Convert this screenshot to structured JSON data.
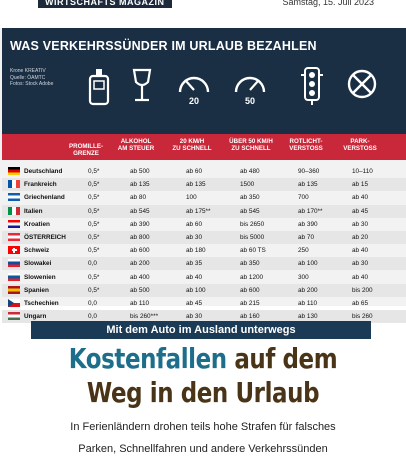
{
  "topbar": {
    "magazine": "WIRTSCHAFTS MAGAZIN",
    "date": "Samstag, 15. Juli 2023"
  },
  "infographic": {
    "title": "WAS VERKEHRSSÜNDER IM URLAUB BEZAHLEN",
    "credits": [
      "Krone KREATIV",
      "Quelle: ÖAMTC",
      "Fotos: Stock Adobe"
    ],
    "icons": [
      {
        "name": "breathalyzer-icon",
        "label": ""
      },
      {
        "name": "wine-glass-icon",
        "label": ""
      },
      {
        "name": "speedometer-icon",
        "label": "20"
      },
      {
        "name": "speedometer-icon",
        "label": "50"
      },
      {
        "name": "traffic-light-icon",
        "label": ""
      },
      {
        "name": "no-parking-icon",
        "label": ""
      }
    ],
    "columns": [
      "PROMILLE-\nGRENZE",
      "ALKOHOL\nAM STEUER",
      "20 KM/H\nZU SCHNELL",
      "ÜBER 50 KM/H\nZU SCHNELL",
      "ROTLICHT-\nVERSTOSS",
      "PARK-\nVERSTOSS"
    ],
    "rows": [
      {
        "country": "Deutschland",
        "flag": [
          "#000000",
          "#dd0000",
          "#ffce00"
        ],
        "flag_dir": "h",
        "promille": "0,5*",
        "alkohol": "ab 500",
        "kmh20": "ab 60",
        "kmh50": "ab 480",
        "rotlicht": "90–360",
        "park": "10–110"
      },
      {
        "country": "Frankreich",
        "flag": [
          "#0055a4",
          "#ffffff",
          "#ef4135"
        ],
        "flag_dir": "v",
        "promille": "0,5*",
        "alkohol": "ab 135",
        "kmh20": "ab 135",
        "kmh50": "1500",
        "rotlicht": "ab 135",
        "park": "ab 15"
      },
      {
        "country": "Griechenland",
        "flag": [
          "#0d5eaf",
          "#ffffff",
          "#0d5eaf"
        ],
        "flag_dir": "h",
        "promille": "0,5*",
        "alkohol": "ab 80",
        "kmh20": "100",
        "kmh50": "ab 350",
        "rotlicht": "700",
        "park": "ab 40"
      },
      {
        "country": "Italien",
        "flag": [
          "#009246",
          "#ffffff",
          "#ce2b37"
        ],
        "flag_dir": "v",
        "promille": "0,5*",
        "alkohol": "ab 545",
        "kmh20": "ab 175**",
        "kmh50": "ab 545",
        "rotlicht": "ab 170**",
        "park": "ab 45"
      },
      {
        "country": "Kroatien",
        "flag": [
          "#ff0000",
          "#ffffff",
          "#171796"
        ],
        "flag_dir": "h",
        "promille": "0,5*",
        "alkohol": "ab 390",
        "kmh20": "ab 60",
        "kmh50": "bis 2650",
        "rotlicht": "ab 390",
        "park": "ab 30"
      },
      {
        "country": "ÖSTERREICH",
        "flag": [
          "#ed2939",
          "#ffffff",
          "#ed2939"
        ],
        "flag_dir": "h",
        "promille": "0,5*",
        "alkohol": "ab 800",
        "kmh20": "ab 30",
        "kmh50": "bis 5000",
        "rotlicht": "ab 70",
        "park": "ab 20"
      },
      {
        "country": "Schweiz",
        "flag": [
          "#ff0000",
          "#ff0000",
          "#ff0000"
        ],
        "flag_dir": "h",
        "promille": "0,5*",
        "alkohol": "ab 600",
        "kmh20": "ab 180",
        "kmh50": "ab 60 TS",
        "rotlicht": "250",
        "park": "ab 40"
      },
      {
        "country": "Slowakei",
        "flag": [
          "#ffffff",
          "#0b4ea2",
          "#ee1c25"
        ],
        "flag_dir": "h",
        "promille": "0,0",
        "alkohol": "ab 200",
        "kmh20": "ab 35",
        "kmh50": "ab 350",
        "rotlicht": "ab 100",
        "park": "ab 30"
      },
      {
        "country": "Slowenien",
        "flag": [
          "#ffffff",
          "#005da4",
          "#ed1c24"
        ],
        "flag_dir": "h",
        "promille": "0,5*",
        "alkohol": "ab 400",
        "kmh20": "ab 40",
        "kmh50": "ab 1200",
        "rotlicht": "300",
        "park": "ab 40"
      },
      {
        "country": "Spanien",
        "flag": [
          "#aa151b",
          "#f1bf00",
          "#aa151b"
        ],
        "flag_dir": "h",
        "promille": "0,5*",
        "alkohol": "ab 500",
        "kmh20": "ab 100",
        "kmh50": "ab 600",
        "rotlicht": "ab 200",
        "park": "bis 200"
      },
      {
        "country": "Tschechien",
        "flag": [
          "#ffffff",
          "#d7141a",
          "#11457e"
        ],
        "flag_dir": "cz",
        "promille": "0,0",
        "alkohol": "ab 110",
        "kmh20": "ab 45",
        "kmh50": "ab 215",
        "rotlicht": "ab 110",
        "park": "ab 65"
      },
      {
        "country": "Ungarn",
        "flag": [
          "#ce2939",
          "#ffffff",
          "#477050"
        ],
        "flag_dir": "h",
        "promille": "0,0",
        "alkohol": "bis 260***",
        "kmh20": "ab 30",
        "kmh50": "ab 160",
        "rotlicht": "ab 130",
        "park": "bis 260"
      }
    ]
  },
  "article": {
    "kicker": "Mit dem Auto im Ausland unterwegs",
    "headline_part1": "Kostenfallen",
    "headline_part2": " auf dem",
    "headline_line2": "Weg in den Urlaub",
    "lead_line1": "In Ferienländern drohen teils hohe Strafen für falsches",
    "lead_line2": "Parken, Schnellfahren und andere Verkehrssünden"
  },
  "colors": {
    "header_bg": "#1b2f44",
    "column_band": "#c9283a",
    "kicker_bg": "#1b3a55",
    "headline_blue": "#1d6e8a",
    "headline_brown": "#4a3418"
  }
}
